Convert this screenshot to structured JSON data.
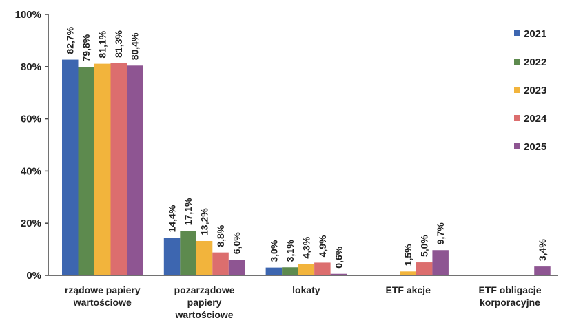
{
  "chart_data": {
    "type": "bar",
    "categories": [
      [
        "rządowe papiery",
        "wartościowe"
      ],
      [
        "pozarządowe",
        "papiery",
        "wartościowe"
      ],
      [
        "lokaty"
      ],
      [
        "ETF akcje"
      ],
      [
        "ETF obligacje",
        "korporacyjne"
      ]
    ],
    "series": [
      {
        "name": "2021",
        "color": "#3d66b0",
        "values": [
          82.7,
          14.4,
          3.0,
          null,
          null
        ],
        "labels": [
          "82,7%",
          "14,4%",
          "3,0%",
          "",
          ""
        ]
      },
      {
        "name": "2022",
        "color": "#5d8a4e",
        "values": [
          79.8,
          17.1,
          3.1,
          null,
          null
        ],
        "labels": [
          "79,8%",
          "17,1%",
          "3,1%",
          "",
          ""
        ]
      },
      {
        "name": "2023",
        "color": "#f2b43c",
        "values": [
          81.1,
          13.2,
          4.3,
          1.5,
          null
        ],
        "labels": [
          "81,1%",
          "13,2%",
          "4,3%",
          "1,5%",
          ""
        ]
      },
      {
        "name": "2024",
        "color": "#dc6e6e",
        "values": [
          81.3,
          8.8,
          4.9,
          5.0,
          null
        ],
        "labels": [
          "81,3%",
          "8,8%",
          "4,9%",
          "5,0%",
          ""
        ]
      },
      {
        "name": "2025",
        "color": "#8e5592",
        "values": [
          80.4,
          6.0,
          0.6,
          9.7,
          3.4
        ],
        "labels": [
          "80,4%",
          "6,0%",
          "0,6%",
          "9,7%",
          "3,4%"
        ]
      }
    ],
    "ylim": [
      0,
      100
    ],
    "yticks": [
      0,
      20,
      40,
      60,
      80,
      100
    ],
    "ytick_labels": [
      "0%",
      "20%",
      "40%",
      "60%",
      "80%",
      "100%"
    ],
    "grid": false,
    "legend_position": "right"
  }
}
